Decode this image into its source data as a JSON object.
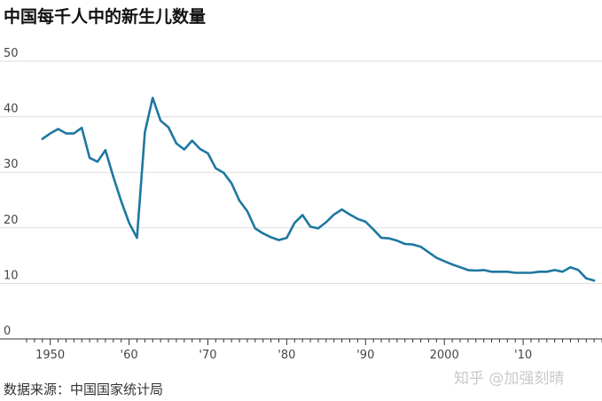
{
  "header": {
    "title": "中国每千人中的新生儿数量"
  },
  "footer": {
    "source": "数据来源：中国国家统计局",
    "watermark": "知乎 @加强刻晴"
  },
  "colors": {
    "line": "#1e77a1",
    "grid": "#dddddd",
    "axis": "#333333"
  },
  "chart_data": {
    "type": "line",
    "title": "中国每千人中的新生儿数量",
    "xlabel": "",
    "ylabel": "",
    "xlim": [
      1947,
      2020
    ],
    "ylim": [
      0,
      50
    ],
    "grid": true,
    "yticks": [
      0,
      10,
      20,
      30,
      40,
      50
    ],
    "yticklabels": [
      "0",
      "10",
      "20",
      "30",
      "40",
      "50"
    ],
    "xticks": [
      1950,
      1960,
      1970,
      1980,
      1990,
      2000,
      2010
    ],
    "xticklabels": [
      "1950",
      "'60",
      "'70",
      "'80",
      "'90",
      "2000",
      "'10"
    ],
    "series": [
      {
        "x": [
          1949,
          1950,
          1951,
          1952,
          1953,
          1954,
          1955,
          1956,
          1957,
          1958,
          1959,
          1960,
          1961,
          1962,
          1963,
          1964,
          1965,
          1966,
          1967,
          1968,
          1969,
          1970,
          1971,
          1972,
          1973,
          1974,
          1975,
          1976,
          1977,
          1978,
          1979,
          1980,
          1981,
          1982,
          1983,
          1984,
          1985,
          1986,
          1987,
          1988,
          1989,
          1990,
          1991,
          1992,
          1993,
          1994,
          1995,
          1996,
          1997,
          1998,
          1999,
          2000,
          2001,
          2002,
          2003,
          2004,
          2005,
          2006,
          2007,
          2008,
          2009,
          2010,
          2011,
          2012,
          2013,
          2014,
          2015,
          2016,
          2017,
          2018,
          2019
        ],
        "values": [
          36.0,
          37.0,
          37.8,
          37.0,
          37.0,
          38.0,
          32.6,
          31.9,
          34.0,
          29.2,
          24.8,
          20.9,
          18.2,
          37.2,
          43.4,
          39.3,
          38.1,
          35.2,
          34.1,
          35.7,
          34.2,
          33.4,
          30.7,
          29.9,
          28.0,
          24.9,
          23.0,
          19.9,
          19.0,
          18.3,
          17.8,
          18.2,
          20.9,
          22.3,
          20.2,
          19.9,
          21.0,
          22.4,
          23.3,
          22.4,
          21.6,
          21.1,
          19.7,
          18.2,
          18.1,
          17.7,
          17.1,
          17.0,
          16.6,
          15.6,
          14.6,
          14.0,
          13.4,
          12.9,
          12.4,
          12.3,
          12.4,
          12.1,
          12.1,
          12.1,
          11.9,
          11.9,
          11.9,
          12.1,
          12.1,
          12.4,
          12.1,
          12.9,
          12.4,
          10.9,
          10.5
        ]
      }
    ]
  }
}
